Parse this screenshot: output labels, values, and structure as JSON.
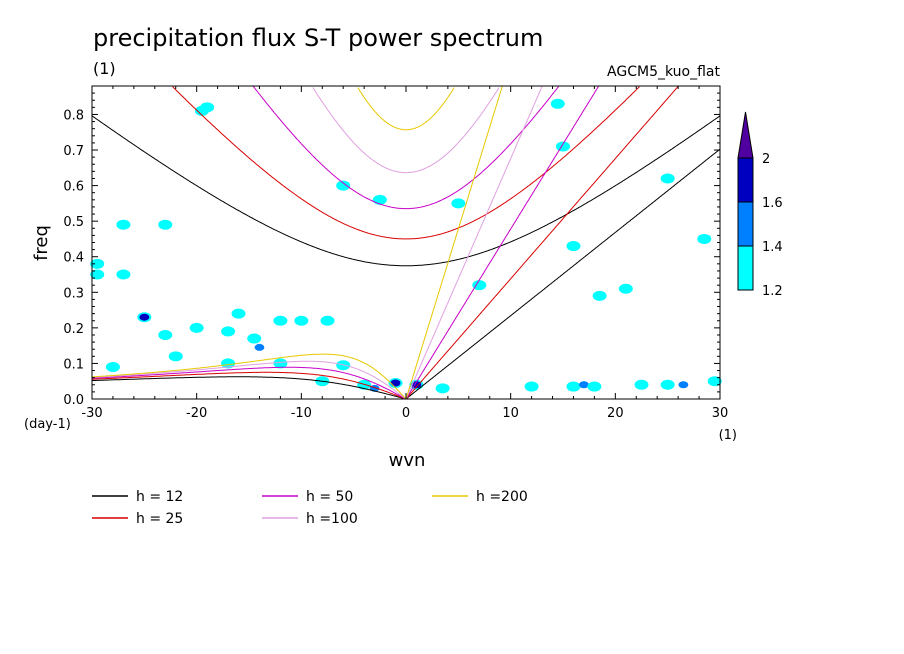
{
  "chart_data": {
    "type": "line",
    "title": "precipitation flux S-T power spectrum",
    "subtitle_left": "(1)",
    "subtitle_right": "AGCM5_kuo_flat",
    "xlabel": "wvn",
    "ylabel": "freq",
    "x_unit": "(1)",
    "y_unit": "(day-1)",
    "xlim": [
      -30,
      30
    ],
    "ylim": [
      0,
      0.88
    ],
    "x_ticks": [
      {
        "v": -30,
        "label": "-30"
      },
      {
        "v": -20,
        "label": "-20"
      },
      {
        "v": -10,
        "label": "-10"
      },
      {
        "v": 0,
        "label": "0"
      },
      {
        "v": 10,
        "label": "10"
      },
      {
        "v": 20,
        "label": "20"
      },
      {
        "v": 30,
        "label": "30"
      }
    ],
    "y_ticks": [
      {
        "v": 0,
        "label": "0.0"
      },
      {
        "v": 0.1,
        "label": "0.1"
      },
      {
        "v": 0.2,
        "label": "0.2"
      },
      {
        "v": 0.3,
        "label": "0.3"
      },
      {
        "v": 0.4,
        "label": "0.4"
      },
      {
        "v": 0.5,
        "label": "0.5"
      },
      {
        "v": 0.6,
        "label": "0.6"
      },
      {
        "v": 0.7,
        "label": "0.7"
      },
      {
        "v": 0.8,
        "label": "0.8"
      }
    ],
    "grid": false,
    "legend_position": "bottom-left",
    "series": [
      {
        "name": "h = 12",
        "h": 12,
        "color": "#000000"
      },
      {
        "name": "h = 25",
        "h": 25,
        "color": "#d80000"
      },
      {
        "name": "h = 50",
        "h": 50,
        "color": "#c800c8"
      },
      {
        "name": "h =100",
        "h": 100,
        "color": "#e0a0e0"
      },
      {
        "name": "h =200",
        "h": 200,
        "color": "#e8c800"
      }
    ],
    "colorbar": {
      "levels": [
        "1.2",
        "1.4",
        "1.6",
        "2"
      ],
      "colors": [
        "#00ffff",
        "#0080ff",
        "#0000c0",
        "#5000a0"
      ]
    },
    "contour_blobs": [
      {
        "x": -29.5,
        "y": 0.35,
        "level": 1
      },
      {
        "x": -27.0,
        "y": 0.35,
        "level": 1
      },
      {
        "x": -25.0,
        "y": 0.23,
        "level": 1
      },
      {
        "x": -25.0,
        "y": 0.23,
        "level": 3
      },
      {
        "x": -23.0,
        "y": 0.18,
        "level": 1
      },
      {
        "x": -20.0,
        "y": 0.2,
        "level": 1
      },
      {
        "x": -17.0,
        "y": 0.19,
        "level": 1
      },
      {
        "x": -16.0,
        "y": 0.24,
        "level": 1
      },
      {
        "x": -14.5,
        "y": 0.17,
        "level": 1
      },
      {
        "x": -14.0,
        "y": 0.145,
        "level": 2
      },
      {
        "x": -12.0,
        "y": 0.22,
        "level": 1
      },
      {
        "x": -10.0,
        "y": 0.22,
        "level": 1
      },
      {
        "x": -7.5,
        "y": 0.22,
        "level": 1
      },
      {
        "x": -28.0,
        "y": 0.09,
        "level": 1
      },
      {
        "x": -22.0,
        "y": 0.12,
        "level": 1
      },
      {
        "x": -17.0,
        "y": 0.1,
        "level": 1
      },
      {
        "x": -12.0,
        "y": 0.1,
        "level": 1
      },
      {
        "x": -6.0,
        "y": 0.095,
        "level": 1
      },
      {
        "x": -8.0,
        "y": 0.05,
        "level": 1
      },
      {
        "x": -4.0,
        "y": 0.04,
        "level": 1
      },
      {
        "x": -3.0,
        "y": 0.03,
        "level": 2
      },
      {
        "x": -1.0,
        "y": 0.045,
        "level": 1
      },
      {
        "x": -1.0,
        "y": 0.045,
        "level": 3
      },
      {
        "x": 1.0,
        "y": 0.04,
        "level": 1
      },
      {
        "x": 1.0,
        "y": 0.04,
        "level": 3
      },
      {
        "x": 3.5,
        "y": 0.03,
        "level": 1
      },
      {
        "x": 12.0,
        "y": 0.035,
        "level": 1
      },
      {
        "x": 16.0,
        "y": 0.035,
        "level": 1
      },
      {
        "x": 17.0,
        "y": 0.04,
        "level": 2
      },
      {
        "x": 18.0,
        "y": 0.035,
        "level": 1
      },
      {
        "x": 22.5,
        "y": 0.04,
        "level": 1
      },
      {
        "x": 25.0,
        "y": 0.04,
        "level": 1
      },
      {
        "x": 26.5,
        "y": 0.04,
        "level": 2
      },
      {
        "x": 29.5,
        "y": 0.05,
        "level": 1
      },
      {
        "x": -19.5,
        "y": 0.81,
        "level": 1
      },
      {
        "x": -2.5,
        "y": 0.56,
        "level": 1
      },
      {
        "x": -6.0,
        "y": 0.6,
        "level": 1
      },
      {
        "x": 5.0,
        "y": 0.55,
        "level": 1
      },
      {
        "x": 7.0,
        "y": 0.32,
        "level": 1
      },
      {
        "x": 14.5,
        "y": 0.83,
        "level": 1
      },
      {
        "x": 15.0,
        "y": 0.71,
        "level": 1
      },
      {
        "x": 16.0,
        "y": 0.43,
        "level": 1
      },
      {
        "x": 18.5,
        "y": 0.29,
        "level": 1
      },
      {
        "x": 25.0,
        "y": 0.62,
        "level": 1
      },
      {
        "x": 28.5,
        "y": 0.45,
        "level": 1
      },
      {
        "x": 21.0,
        "y": 0.31,
        "level": 1
      },
      {
        "x": -27.0,
        "y": 0.49,
        "level": 1
      },
      {
        "x": -23.0,
        "y": 0.49,
        "level": 1
      },
      {
        "x": -19.0,
        "y": 0.82,
        "level": 1
      },
      {
        "x": -29.5,
        "y": 0.38,
        "level": 1
      }
    ]
  }
}
